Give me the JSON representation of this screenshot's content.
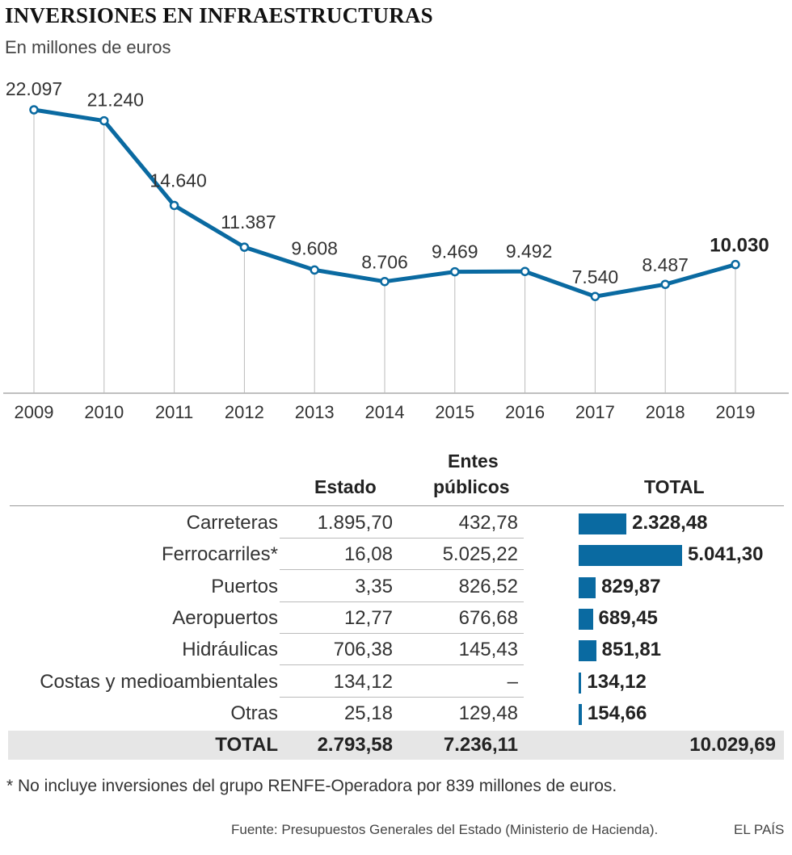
{
  "title": "INVERSIONES EN INFRAESTRUCTURAS",
  "subtitle": "En millones de euros",
  "chart_data": {
    "type": "line",
    "title": "INVERSIONES EN INFRAESTRUCTURAS",
    "ylabel": "En millones de euros",
    "x": [
      "2009",
      "2010",
      "2011",
      "2012",
      "2013",
      "2014",
      "2015",
      "2016",
      "2017",
      "2018",
      "2019"
    ],
    "values": [
      22097,
      21240,
      14640,
      11387,
      9608,
      8706,
      9469,
      9492,
      7540,
      8487,
      10030
    ],
    "labels": [
      "22.097",
      "21.240",
      "14.640",
      "11.387",
      "9.608",
      "8.706",
      "9.469",
      "9.492",
      "7.540",
      "8.487",
      "10.030"
    ],
    "ylim": [
      0,
      24000
    ],
    "color": "#0a6aa1"
  },
  "table": {
    "headers": {
      "estado": "Estado",
      "entes_line1": "Entes",
      "entes_line2": "públicos",
      "total": "TOTAL"
    },
    "rows": [
      {
        "label": "Carreteras",
        "estado": "1.895,70",
        "entes": "432,78",
        "total": "2.328,48",
        "total_value": 2328.48
      },
      {
        "label": "Ferrocarriles*",
        "estado": "16,08",
        "entes": "5.025,22",
        "total": "5.041,30",
        "total_value": 5041.3
      },
      {
        "label": "Puertos",
        "estado": "3,35",
        "entes": "826,52",
        "total": "829,87",
        "total_value": 829.87
      },
      {
        "label": "Aeropuertos",
        "estado": "12,77",
        "entes": "676,68",
        "total": "689,45",
        "total_value": 689.45
      },
      {
        "label": "Hidráulicas",
        "estado": "706,38",
        "entes": "145,43",
        "total": "851,81",
        "total_value": 851.81
      },
      {
        "label": "Costas y medioambientales",
        "estado": "134,12",
        "entes": "–",
        "total": "134,12",
        "total_value": 134.12
      },
      {
        "label": "Otras",
        "estado": "25,18",
        "entes": "129,48",
        "total": "154,66",
        "total_value": 154.66
      }
    ],
    "totals": {
      "label": "TOTAL",
      "estado": "2.793,58",
      "entes": "7.236,11",
      "total": "10.029,69"
    },
    "bar_color": "#0a6aa1"
  },
  "footnote": "* No incluye inversiones del grupo RENFE-Operadora por 839 millones de euros.",
  "source": "Fuente: Presupuestos Generales del Estado (Ministerio de Hacienda).",
  "brand": "EL PAÍS"
}
